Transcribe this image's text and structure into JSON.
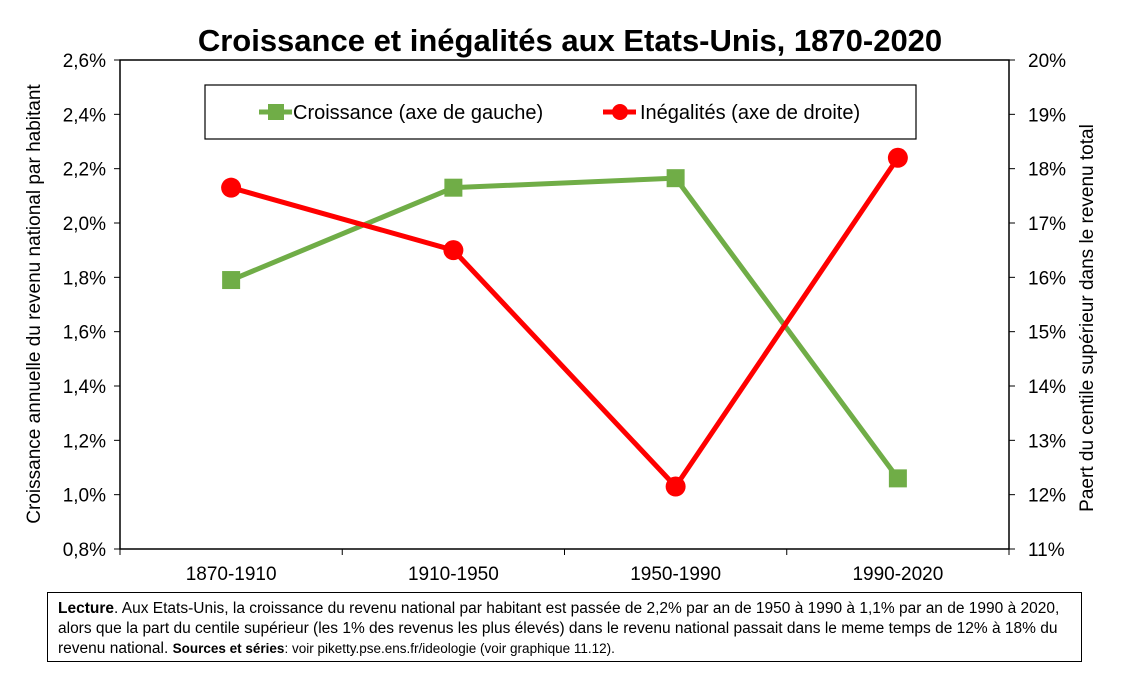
{
  "chart_data": {
    "type": "line",
    "title": "Croissance et inégalités aux Etats-Unis, 1870-2020",
    "categories": [
      "1870-1910",
      "1910-1950",
      "1950-1990",
      "1990-2020"
    ],
    "series": [
      {
        "name": "Croissance (axe de gauche)",
        "axis": "left",
        "color": "#70ad47",
        "marker": "square",
        "values": [
          1.79,
          2.13,
          2.165,
          1.06
        ]
      },
      {
        "name": "Inégalités (axe de droite)",
        "axis": "right",
        "color": "#ff0000",
        "marker": "circle",
        "values": [
          17.65,
          16.5,
          12.15,
          18.2
        ]
      }
    ],
    "ylabel_left": "Croissance annuelle du revenu national par habitant",
    "ylabel_right": "Paert du centile supérieur dans le revenu total",
    "ylim_left": [
      0.8,
      2.6
    ],
    "ylim_right": [
      11,
      20
    ],
    "yticks_left": [
      "0,8%",
      "1,0%",
      "1,2%",
      "1,4%",
      "1,6%",
      "1,8%",
      "2,0%",
      "2,2%",
      "2,4%",
      "2,6%"
    ],
    "yticks_right": [
      "11%",
      "12%",
      "13%",
      "14%",
      "15%",
      "16%",
      "17%",
      "18%",
      "19%",
      "20%"
    ],
    "legend": "top",
    "grid": false
  },
  "note": {
    "lecture_label": "Lecture",
    "lecture_text": ". Aux Etats-Unis, la croissance du revenu national par habitant est passée de 2,2% par an de 1950 à 1990 à 1,1% par an de 1990 à 2020, alors que la part du centile supérieur (les 1% des revenus les plus élevés) dans le revenu national passait dans le meme temps de 12% à 18% du revenu national.",
    "sources_label": "Sources et séries",
    "sources_text": ": voir piketty.pse.ens.fr/ideologie (voir graphique 11.12)."
  }
}
